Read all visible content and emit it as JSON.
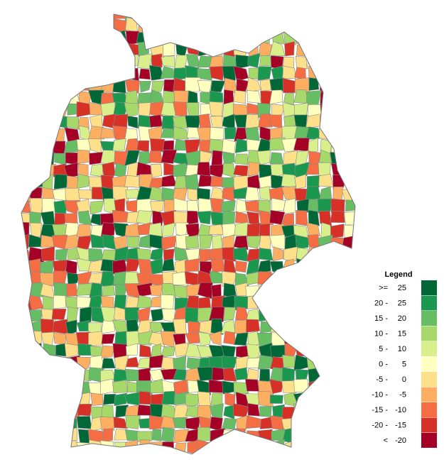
{
  "legend": {
    "title": "Legend",
    "items": [
      {
        "left": ">=",
        "right": "25",
        "color": "#006837"
      },
      {
        "left": "20 -",
        "right": "25",
        "color": "#1a9850"
      },
      {
        "left": "15 -",
        "right": "20",
        "color": "#66bd63"
      },
      {
        "left": "10 -",
        "right": "15",
        "color": "#a6d96a"
      },
      {
        "left": "5 -",
        "right": "10",
        "color": "#d9ef8b"
      },
      {
        "left": "0 -",
        "right": "5",
        "color": "#ffffbf"
      },
      {
        "left": "-5 -",
        "right": "0",
        "color": "#fee08b"
      },
      {
        "left": "-10 -",
        "right": "-5",
        "color": "#fdae61"
      },
      {
        "left": "-15 -",
        "right": "-10",
        "color": "#f46d43"
      },
      {
        "left": "-20 -",
        "right": "-15",
        "color": "#d73027"
      },
      {
        "left": "<",
        "right": "-20",
        "color": "#a50026"
      }
    ]
  }
}
